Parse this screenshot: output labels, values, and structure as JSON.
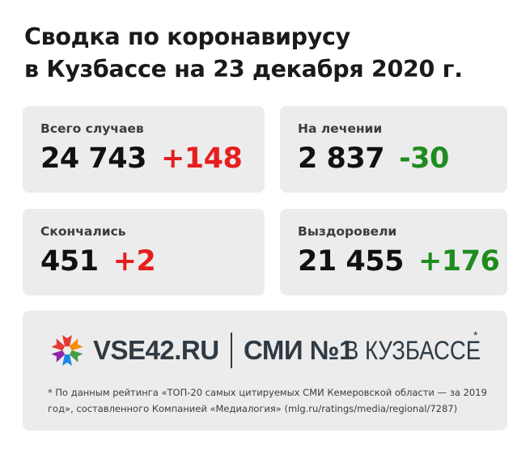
{
  "title": {
    "line1": "Сводка по коронавирусу",
    "line2": "в Кузбассе на 23 декабря 2020 г."
  },
  "stats": {
    "total": {
      "label": "Всего случаев",
      "value": "24 743",
      "delta": "+148",
      "delta_color": "#e61e1e"
    },
    "treatment": {
      "label": "На лечении",
      "value": "2 837",
      "delta": "-30",
      "delta_color": "#1e8c1e"
    },
    "deaths": {
      "label": "Скончались",
      "value": "451",
      "delta": "+2",
      "delta_color": "#e61e1e"
    },
    "recovered": {
      "label": "Выздоровели",
      "value": "21 455",
      "delta": "+176",
      "delta_color": "#1e8c1e"
    }
  },
  "footer": {
    "site": "VSE42.RU",
    "slogan_bold": "СМИ №1",
    "slogan_light": "В КУЗБАССЕ",
    "star": "*",
    "footnote": "* По данным  рейтинга «ТОП-20 самых цитируемых СМИ Кемеровской области — за 2019 год»,  составленного Компанией «Медиалогия» (mlg.ru/ratings/media/regional/7287)"
  }
}
